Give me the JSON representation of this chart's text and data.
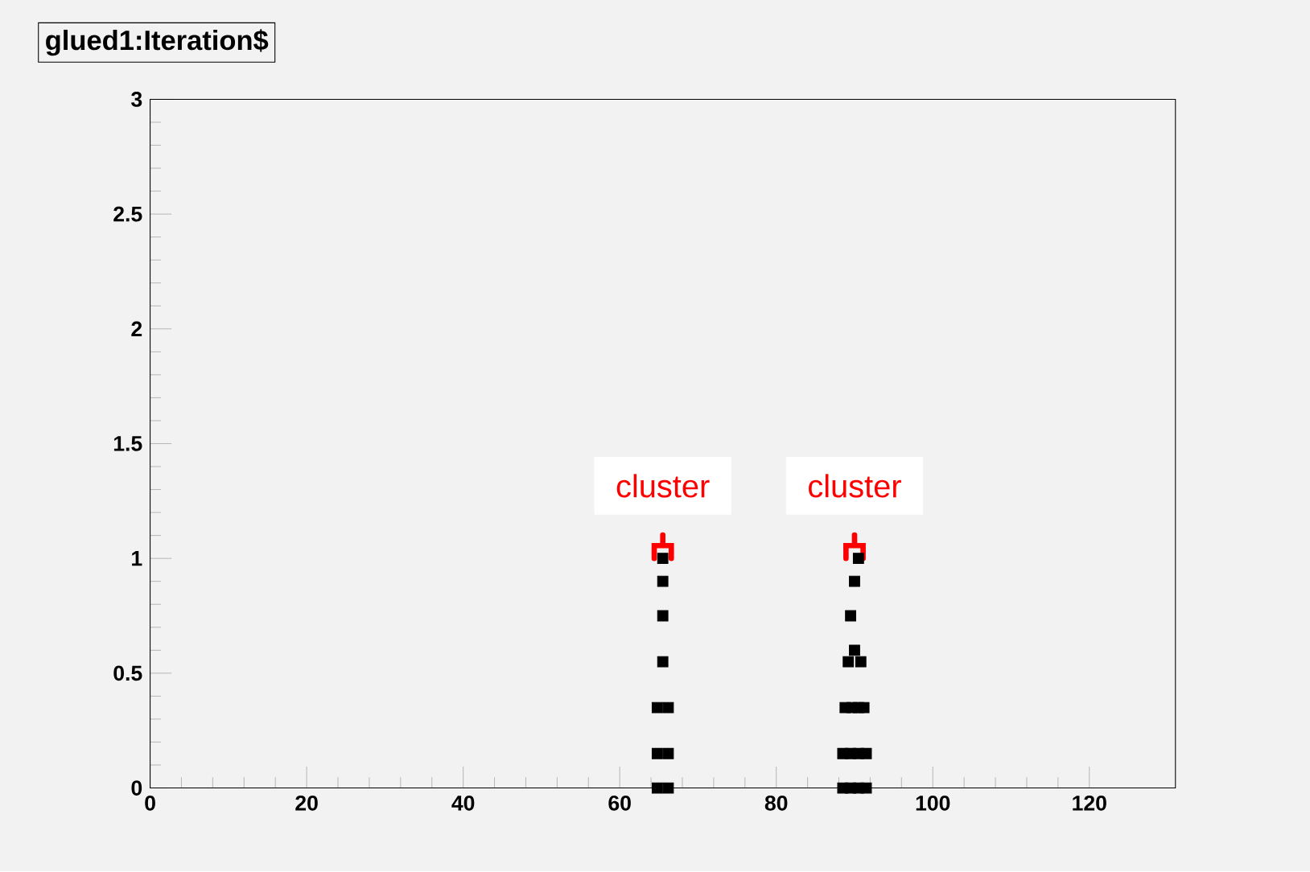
{
  "chart_data": {
    "type": "scatter",
    "title": "glued1:Iteration$",
    "xlim": [
      0,
      131
    ],
    "ylim": [
      0,
      3
    ],
    "xticks": [
      0,
      20,
      40,
      60,
      80,
      100,
      120
    ],
    "yticks": [
      0,
      0.5,
      1,
      1.5,
      2,
      2.5,
      3
    ],
    "marker": "square",
    "grid": false,
    "series": [
      {
        "color": "#000000",
        "x": [
          64.8,
          66.2,
          64.8,
          66.2,
          64.8,
          66.2,
          65.5,
          65.5,
          65.5,
          65.5
        ],
        "values": [
          0,
          0,
          0.15,
          0.15,
          0.35,
          0.35,
          0.55,
          0.75,
          0.9,
          1
        ]
      },
      {
        "color": "#000000",
        "x": [
          88.5,
          89.5,
          90.5,
          91.5,
          88.5,
          89.5,
          90.5,
          91.5,
          88.8,
          89.7,
          90.5,
          91.2,
          89.2,
          90.0,
          90.8,
          89.5,
          90.0,
          90.5
        ],
        "values": [
          0,
          0,
          0,
          0,
          0.15,
          0.15,
          0.15,
          0.15,
          0.35,
          0.35,
          0.35,
          0.35,
          0.55,
          0.6,
          0.55,
          0.75,
          0.9,
          1
        ]
      }
    ],
    "annotations": [
      {
        "text": "cluster",
        "x": 65.5,
        "y": 1
      },
      {
        "text": "cluster",
        "x": 90,
        "y": 1
      }
    ]
  }
}
